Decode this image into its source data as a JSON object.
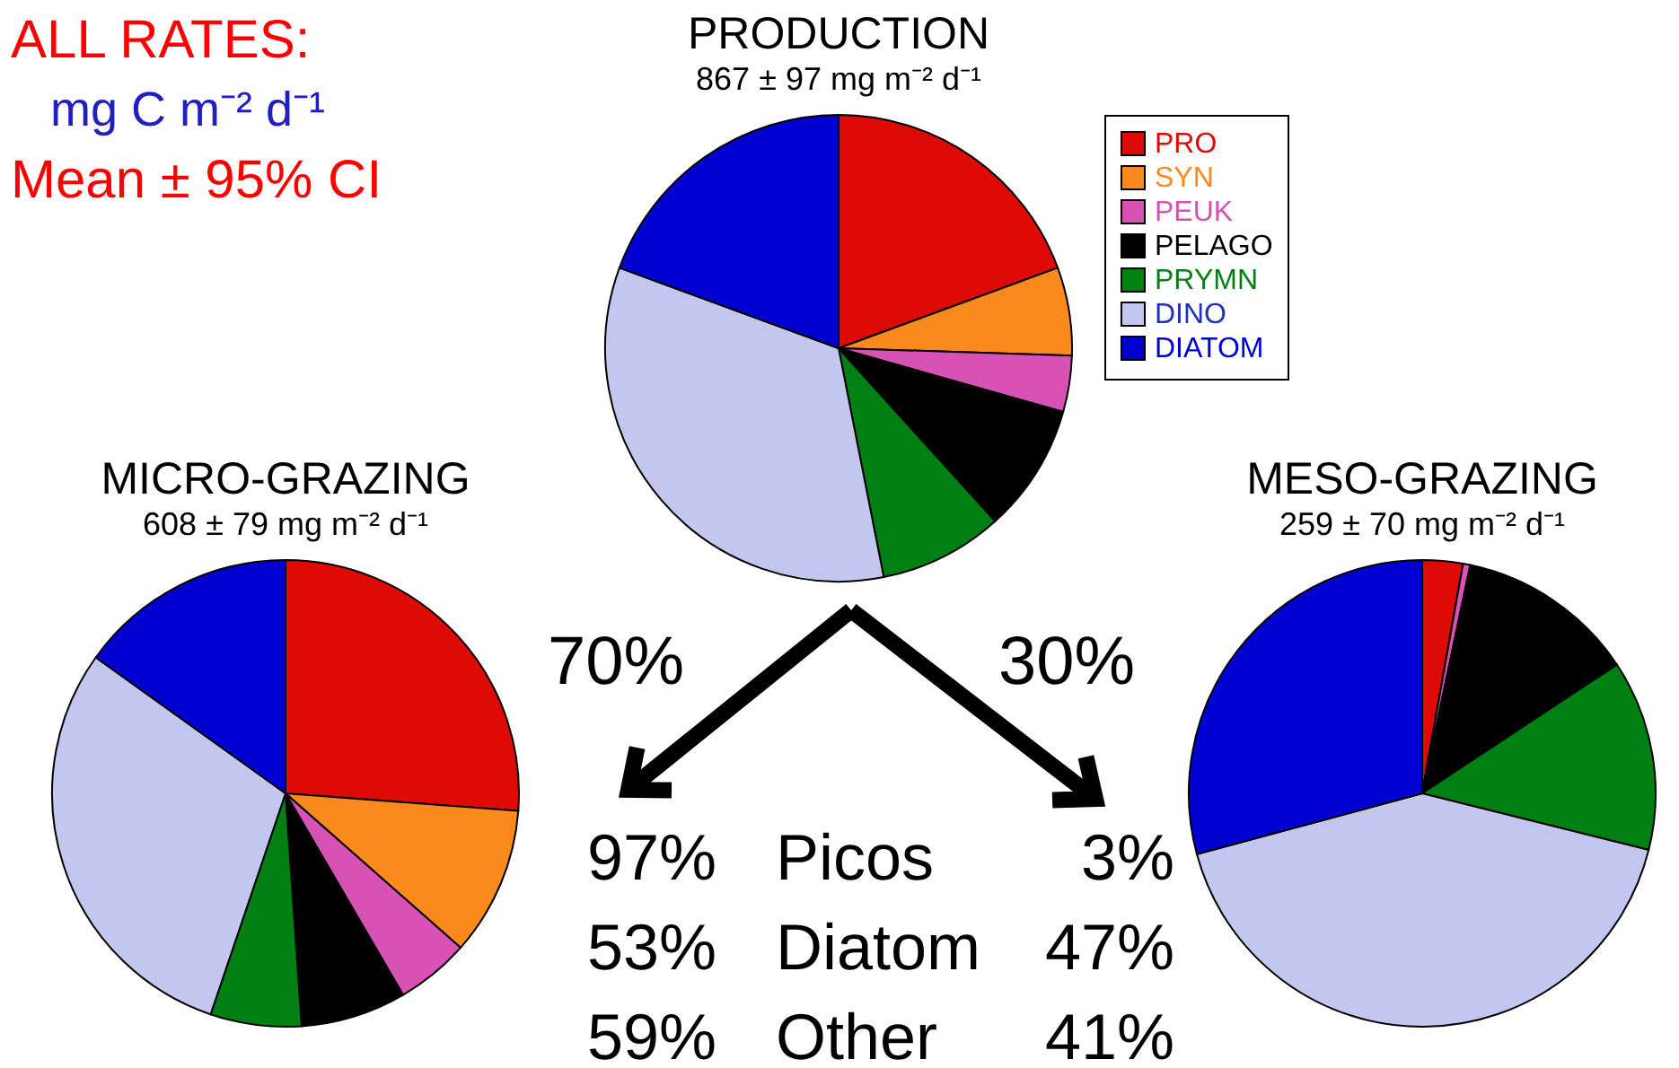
{
  "chart_data": [
    {
      "type": "pie",
      "title": "PRODUCTION",
      "subtitle": "867 ± 97 mg m⁻² d⁻¹",
      "legend": "right",
      "categories": [
        "PRO",
        "SYN",
        "PEUK",
        "PELAGO",
        "PRYMN",
        "DINO",
        "DIATOM"
      ],
      "values": [
        19.4,
        6.1,
        3.9,
        8.9,
        8.6,
        33.7,
        19.4
      ],
      "colors": [
        "#dd0a05",
        "#fb8a1d",
        "#d752b4",
        "#000000",
        "#007f13",
        "#c3c6ee",
        "#0000d0"
      ],
      "annotations": [
        "ALL RATES:",
        "mg C m⁻² d⁻¹",
        "Mean ± 95% CI",
        "70%",
        "30%",
        "97%",
        "Picos",
        "3%",
        "53%",
        "Diatom",
        "47%",
        "59%",
        "Other",
        "41%"
      ]
    },
    {
      "type": "pie",
      "title": "MICRO-GRAZING",
      "subtitle": "608 ± 79 mg m⁻² d⁻¹",
      "categories": [
        null,
        null,
        null,
        null,
        null,
        null,
        null
      ],
      "values": [
        26.2,
        10.3,
        5.1,
        7.3,
        6.3,
        29.7,
        15.1
      ],
      "colors": [
        "#dd0a05",
        "#fb8a1d",
        "#d752b4",
        "#000000",
        "#007f13",
        "#c3c6ee",
        "#0000d0"
      ]
    },
    {
      "type": "pie",
      "title": "MESO-GRAZING",
      "subtitle": "259 ± 70 mg m⁻² d⁻¹",
      "categories": [
        null,
        null,
        null,
        null,
        null,
        null,
        null
      ],
      "values": [
        2.8,
        0,
        0.5,
        12.4,
        13.2,
        41.9,
        29.2
      ],
      "colors": [
        "#dd0a05",
        "#fb8a1d",
        "#d752b4",
        "#000000",
        "#007f13",
        "#c3c6ee",
        "#0000d0"
      ]
    }
  ]
}
